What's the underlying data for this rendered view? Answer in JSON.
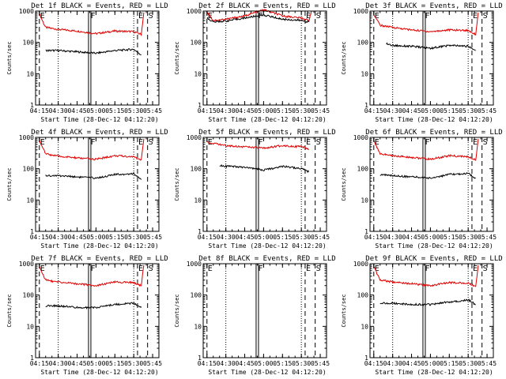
{
  "chart_data": [
    {
      "type": "line",
      "title": "Det 1f BLACK = Events, RED = LLD",
      "xlabel": "Start Time (28-Dec-12 04:12:20)",
      "ylabel": "Counts/sec",
      "yscale": "log",
      "ylim": [
        1,
        1000
      ],
      "xlim": [
        "04:12",
        "05:50"
      ],
      "x_ticks": [
        "04:15",
        "04:30",
        "04:45",
        "05:00",
        "05:15",
        "05:30",
        "05:45"
      ],
      "y_ticks": [
        "1",
        "10",
        "100",
        "1000"
      ],
      "markers": [
        {
          "label": "E",
          "time": "04:15"
        },
        {
          "label": "F",
          "time": "04:55"
        },
        {
          "label": "E",
          "time": "05:33"
        },
        {
          "label": "S",
          "time": "05:41"
        }
      ],
      "series": [
        {
          "color": "#e00000",
          "x": [
            "04:15",
            "04:20",
            "04:30",
            "04:45",
            "05:00",
            "05:15",
            "05:30",
            "05:36",
            "05:38"
          ],
          "values": [
            800,
            300,
            260,
            230,
            190,
            230,
            220,
            180,
            900
          ]
        },
        {
          "color": "#000000",
          "x": [
            "04:20",
            "04:30",
            "04:45",
            "05:00",
            "05:15",
            "05:30",
            "05:36"
          ],
          "values": [
            55,
            55,
            50,
            45,
            55,
            60,
            40
          ]
        }
      ]
    },
    {
      "type": "line",
      "title": "Det 2f BLACK = Events, RED = LLD",
      "xlabel": "Start Time (28-Dec-12 04:12:20)",
      "ylabel": "Counts/sec",
      "yscale": "log",
      "ylim": [
        1,
        1000
      ],
      "xlim": [
        "04:12",
        "05:50"
      ],
      "x_ticks": [
        "04:15",
        "04:30",
        "04:45",
        "05:00",
        "05:15",
        "05:30",
        "05:45"
      ],
      "y_ticks": [
        "1",
        "10",
        "100",
        "1000"
      ],
      "markers": [
        {
          "label": "E",
          "time": "04:15"
        },
        {
          "label": "F",
          "time": "04:55"
        },
        {
          "label": "E",
          "time": "05:33"
        },
        {
          "label": "S",
          "time": "05:41"
        }
      ],
      "series": [
        {
          "color": "#e00000",
          "x": [
            "04:15",
            "04:20",
            "04:30",
            "04:45",
            "05:00",
            "05:15",
            "05:30",
            "05:36",
            "05:38"
          ],
          "values": [
            950,
            500,
            550,
            700,
            1100,
            700,
            600,
            500,
            1000
          ]
        },
        {
          "color": "#000000",
          "x": [
            "04:15",
            "04:20",
            "04:30",
            "04:45",
            "05:00",
            "05:15",
            "05:30",
            "05:36"
          ],
          "values": [
            600,
            450,
            480,
            600,
            750,
            550,
            500,
            450
          ]
        }
      ]
    },
    {
      "type": "line",
      "title": "Det 3f BLACK = Events, RED = LLD",
      "xlabel": "Start Time (28-Dec-12 04:12:20)",
      "ylabel": "Counts/sec",
      "yscale": "log",
      "ylim": [
        1,
        1000
      ],
      "xlim": [
        "04:12",
        "05:50"
      ],
      "x_ticks": [
        "04:15",
        "04:30",
        "04:45",
        "05:00",
        "05:15",
        "05:30",
        "05:45"
      ],
      "y_ticks": [
        "1",
        "10",
        "100",
        "1000"
      ],
      "markers": [
        {
          "label": "E",
          "time": "04:15"
        },
        {
          "label": "F",
          "time": "04:55"
        },
        {
          "label": "E",
          "time": "05:33"
        },
        {
          "label": "S",
          "time": "05:41"
        }
      ],
      "series": [
        {
          "color": "#e00000",
          "x": [
            "04:15",
            "04:20",
            "04:30",
            "04:45",
            "05:00",
            "05:15",
            "05:30",
            "05:36",
            "05:38"
          ],
          "values": [
            800,
            350,
            300,
            250,
            220,
            250,
            240,
            180,
            900
          ]
        },
        {
          "color": "#000000",
          "x": [
            "04:25",
            "04:30",
            "04:45",
            "05:00",
            "05:15",
            "05:30",
            "05:36"
          ],
          "values": [
            90,
            80,
            75,
            65,
            80,
            75,
            55
          ]
        }
      ]
    },
    {
      "type": "line",
      "title": "Det 4f BLACK = Events, RED = LLD",
      "xlabel": "Start Time (28-Dec-12 04:12:20)",
      "ylabel": "Counts/sec",
      "yscale": "log",
      "ylim": [
        1,
        1000
      ],
      "xlim": [
        "04:12",
        "05:50"
      ],
      "x_ticks": [
        "04:15",
        "04:30",
        "04:45",
        "05:00",
        "05:15",
        "05:30",
        "05:45"
      ],
      "y_ticks": [
        "1",
        "10",
        "100",
        "1000"
      ],
      "markers": [
        {
          "label": "E",
          "time": "04:15"
        },
        {
          "label": "F",
          "time": "04:55"
        },
        {
          "label": "E",
          "time": "05:33"
        },
        {
          "label": "S",
          "time": "05:41"
        }
      ],
      "series": [
        {
          "color": "#e00000",
          "x": [
            "04:15",
            "04:20",
            "04:30",
            "04:45",
            "05:00",
            "05:15",
            "05:30",
            "05:36",
            "05:38"
          ],
          "values": [
            800,
            300,
            250,
            220,
            200,
            260,
            240,
            190,
            900
          ]
        },
        {
          "color": "#000000",
          "x": [
            "04:20",
            "04:30",
            "04:45",
            "05:00",
            "05:15",
            "05:30",
            "05:36"
          ],
          "values": [
            60,
            60,
            55,
            50,
            65,
            70,
            45
          ]
        }
      ]
    },
    {
      "type": "line",
      "title": "Det 5f BLACK = Events, RED = LLD",
      "xlabel": "Start Time (28-Dec-12 04:12:20)",
      "ylabel": "Counts/sec",
      "yscale": "log",
      "ylim": [
        1,
        1000
      ],
      "xlim": [
        "04:12",
        "05:50"
      ],
      "x_ticks": [
        "04:15",
        "04:30",
        "04:45",
        "05:00",
        "05:15",
        "05:30",
        "05:45"
      ],
      "y_ticks": [
        "1",
        "10",
        "100",
        "1000"
      ],
      "markers": [
        {
          "label": "E",
          "time": "04:15"
        },
        {
          "label": "F",
          "time": "04:55"
        },
        {
          "label": "E",
          "time": "05:33"
        },
        {
          "label": "S",
          "time": "05:41"
        }
      ],
      "series": [
        {
          "color": "#e00000",
          "x": [
            "04:15",
            "04:30",
            "04:45",
            "05:00",
            "05:15",
            "05:30",
            "05:36"
          ],
          "values": [
            700,
            550,
            500,
            450,
            550,
            500,
            420
          ]
        },
        {
          "color": "#000000",
          "x": [
            "04:25",
            "04:30",
            "04:45",
            "05:00",
            "05:15",
            "05:30",
            "05:36"
          ],
          "values": [
            130,
            120,
            110,
            90,
            120,
            100,
            80
          ]
        }
      ]
    },
    {
      "type": "line",
      "title": "Det 6f BLACK = Events, RED = LLD",
      "xlabel": "Start Time (28-Dec-12 04:12:20)",
      "ylabel": "Counts/sec",
      "yscale": "log",
      "ylim": [
        1,
        1000
      ],
      "xlim": [
        "04:12",
        "05:50"
      ],
      "x_ticks": [
        "04:15",
        "04:30",
        "04:45",
        "05:00",
        "05:15",
        "05:30",
        "05:45"
      ],
      "y_ticks": [
        "1",
        "10",
        "100",
        "1000"
      ],
      "markers": [
        {
          "label": "E",
          "time": "04:15"
        },
        {
          "label": "F",
          "time": "04:55"
        },
        {
          "label": "E",
          "time": "05:33"
        },
        {
          "label": "S",
          "time": "05:41"
        }
      ],
      "series": [
        {
          "color": "#e00000",
          "x": [
            "04:15",
            "04:20",
            "04:30",
            "04:45",
            "05:00",
            "05:15",
            "05:30",
            "05:36",
            "05:38"
          ],
          "values": [
            800,
            300,
            260,
            230,
            200,
            260,
            240,
            190,
            900
          ]
        },
        {
          "color": "#000000",
          "x": [
            "04:20",
            "04:30",
            "04:45",
            "05:00",
            "05:15",
            "05:30",
            "05:36"
          ],
          "values": [
            65,
            60,
            55,
            50,
            65,
            70,
            50
          ]
        }
      ]
    },
    {
      "type": "line",
      "title": "Det 7f BLACK = Events, RED = LLD",
      "xlabel": "Start Time (28-Dec-12 04:12:20)",
      "ylabel": "Counts/sec",
      "yscale": "log",
      "ylim": [
        1,
        1000
      ],
      "xlim": [
        "04:12",
        "05:50"
      ],
      "x_ticks": [
        "04:15",
        "04:30",
        "04:45",
        "05:00",
        "05:15",
        "05:30",
        "05:45"
      ],
      "y_ticks": [
        "1",
        "10",
        "100",
        "1000"
      ],
      "markers": [
        {
          "label": "E",
          "time": "04:15"
        },
        {
          "label": "F",
          "time": "04:55"
        },
        {
          "label": "E",
          "time": "05:33"
        },
        {
          "label": "S",
          "time": "05:41"
        }
      ],
      "series": [
        {
          "color": "#e00000",
          "x": [
            "04:15",
            "04:20",
            "04:30",
            "04:45",
            "05:00",
            "05:15",
            "05:30",
            "05:36",
            "05:38"
          ],
          "values": [
            800,
            300,
            260,
            230,
            200,
            260,
            250,
            200,
            900
          ]
        },
        {
          "color": "#000000",
          "x": [
            "04:20",
            "04:30",
            "04:45",
            "05:00",
            "05:15",
            "05:30",
            "05:36"
          ],
          "values": [
            45,
            45,
            40,
            40,
            50,
            55,
            40
          ]
        }
      ]
    },
    {
      "type": "line",
      "title": "Det 8f BLACK = Events, RED = LLD",
      "xlabel": "Start Time (28-Dec-12 04:12:20)",
      "ylabel": "Counts/sec",
      "yscale": "log",
      "ylim": [
        1,
        1000
      ],
      "xlim": [
        "04:12",
        "05:50"
      ],
      "x_ticks": [
        "04:15",
        "04:30",
        "04:45",
        "05:00",
        "05:15",
        "05:30",
        "05:45"
      ],
      "y_ticks": [
        "1",
        "10",
        "100",
        "1000"
      ],
      "markers": [
        {
          "label": "E",
          "time": "04:15"
        },
        {
          "label": "F",
          "time": "04:55"
        },
        {
          "label": "E",
          "time": "05:33"
        },
        {
          "label": "S",
          "time": "05:41"
        }
      ],
      "series": []
    },
    {
      "type": "line",
      "title": "Det 9f BLACK = Events, RED = LLD",
      "xlabel": "Start Time (28-Dec-12 04:12:20)",
      "ylabel": "Counts/sec",
      "yscale": "log",
      "ylim": [
        1,
        1000
      ],
      "xlim": [
        "04:12",
        "05:50"
      ],
      "x_ticks": [
        "04:15",
        "04:30",
        "04:45",
        "05:00",
        "05:15",
        "05:30",
        "05:45"
      ],
      "y_ticks": [
        "1",
        "10",
        "100",
        "1000"
      ],
      "markers": [
        {
          "label": "E",
          "time": "04:15"
        },
        {
          "label": "F",
          "time": "04:55"
        },
        {
          "label": "E",
          "time": "05:33"
        },
        {
          "label": "S",
          "time": "05:41"
        }
      ],
      "series": [
        {
          "color": "#e00000",
          "x": [
            "04:15",
            "04:20",
            "04:30",
            "04:45",
            "05:00",
            "05:15",
            "05:30",
            "05:36",
            "05:38"
          ],
          "values": [
            800,
            300,
            260,
            230,
            200,
            250,
            240,
            190,
            900
          ]
        },
        {
          "color": "#000000",
          "x": [
            "04:20",
            "04:30",
            "04:45",
            "05:00",
            "05:15",
            "05:30",
            "05:36"
          ],
          "values": [
            55,
            55,
            50,
            50,
            60,
            70,
            50
          ]
        }
      ]
    }
  ]
}
